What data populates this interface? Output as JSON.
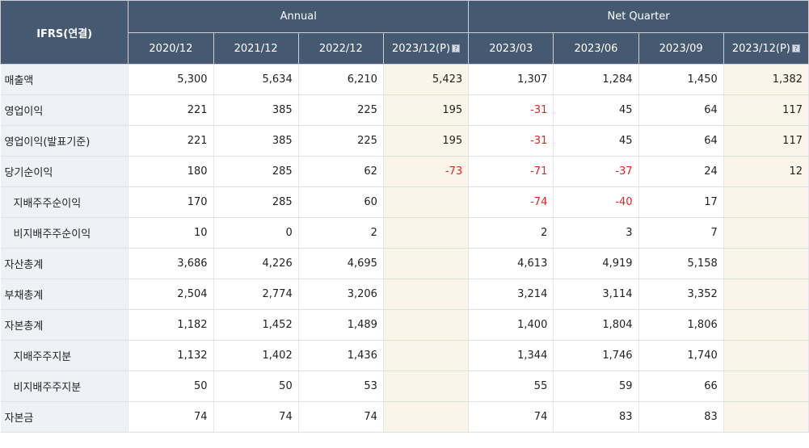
{
  "header": {
    "label": "IFRS(연결)",
    "annual": "Annual",
    "quarter": "Net Quarter",
    "note_icon": "question-icon",
    "columns": [
      "2020/12",
      "2021/12",
      "2022/12",
      "2023/12(P)",
      "2023/03",
      "2023/06",
      "2023/09",
      "2023/12(P)"
    ]
  },
  "rows": [
    {
      "label": "매출액",
      "indent": false,
      "values": [
        "5,300",
        "5,634",
        "6,210",
        "5,423",
        "1,307",
        "1,284",
        "1,450",
        "1,382"
      ]
    },
    {
      "label": "영업이익",
      "indent": false,
      "values": [
        "221",
        "385",
        "225",
        "195",
        "-31",
        "45",
        "64",
        "117"
      ]
    },
    {
      "label": "영업이익(발표기준)",
      "indent": false,
      "values": [
        "221",
        "385",
        "225",
        "195",
        "-31",
        "45",
        "64",
        "117"
      ]
    },
    {
      "label": "당기순이익",
      "indent": false,
      "values": [
        "180",
        "285",
        "62",
        "-73",
        "-71",
        "-37",
        "24",
        "12"
      ]
    },
    {
      "label": "지배주주순이익",
      "indent": true,
      "values": [
        "170",
        "285",
        "60",
        "",
        "-74",
        "-40",
        "17",
        ""
      ]
    },
    {
      "label": "비지배주주순이익",
      "indent": true,
      "values": [
        "10",
        "0",
        "2",
        "",
        "2",
        "3",
        "7",
        ""
      ]
    },
    {
      "label": "자산총계",
      "indent": false,
      "values": [
        "3,686",
        "4,226",
        "4,695",
        "",
        "4,613",
        "4,919",
        "5,158",
        ""
      ]
    },
    {
      "label": "부채총계",
      "indent": false,
      "values": [
        "2,504",
        "2,774",
        "3,206",
        "",
        "3,214",
        "3,114",
        "3,352",
        ""
      ]
    },
    {
      "label": "자본총계",
      "indent": false,
      "values": [
        "1,182",
        "1,452",
        "1,489",
        "",
        "1,400",
        "1,804",
        "1,806",
        ""
      ]
    },
    {
      "label": "지배주주지분",
      "indent": true,
      "values": [
        "1,132",
        "1,402",
        "1,436",
        "",
        "1,344",
        "1,746",
        "1,740",
        ""
      ]
    },
    {
      "label": "비지배주주지분",
      "indent": true,
      "values": [
        "50",
        "50",
        "53",
        "",
        "55",
        "59",
        "66",
        ""
      ]
    },
    {
      "label": "자본금",
      "indent": false,
      "values": [
        "74",
        "74",
        "74",
        "",
        "74",
        "83",
        "83",
        ""
      ]
    }
  ]
}
